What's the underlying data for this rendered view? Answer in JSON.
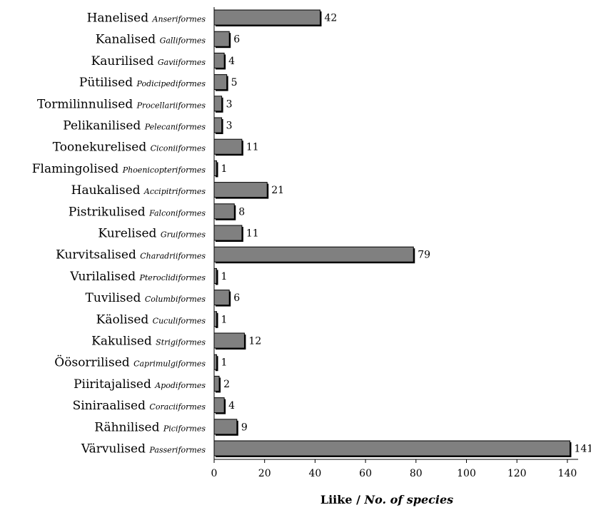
{
  "chart_data": {
    "type": "bar",
    "orientation": "horizontal",
    "categories": [
      {
        "name": "Hanelised",
        "latin": "Anseriformes"
      },
      {
        "name": "Kanalised",
        "latin": "Galliformes"
      },
      {
        "name": "Kaurilised",
        "latin": "Gaviiformes"
      },
      {
        "name": "Pütilised",
        "latin": "Podicipediformes"
      },
      {
        "name": "Tormilinnulised",
        "latin": "Procellariiformes"
      },
      {
        "name": "Pelikanilised",
        "latin": "Pelecaniformes"
      },
      {
        "name": "Toonekurelised",
        "latin": "Ciconiiformes"
      },
      {
        "name": "Flamingolised",
        "latin": "Phoenicopteriformes"
      },
      {
        "name": "Haukalised",
        "latin": "Accipitriformes"
      },
      {
        "name": "Pistrikulised",
        "latin": "Falconiformes"
      },
      {
        "name": "Kurelised",
        "latin": "Gruiformes"
      },
      {
        "name": "Kurvitsalised",
        "latin": "Charadriiformes"
      },
      {
        "name": "Vurilalised",
        "latin": "Pteroclidiformes"
      },
      {
        "name": "Tuvilised",
        "latin": "Columbiformes"
      },
      {
        "name": "Käolised",
        "latin": "Cuculiformes"
      },
      {
        "name": "Kakulised",
        "latin": "Strigiformes"
      },
      {
        "name": "Öösorrilised",
        "latin": "Caprimulgiformes"
      },
      {
        "name": "Piiritajalised",
        "latin": "Apodiformes"
      },
      {
        "name": "Siniraalised",
        "latin": "Coraciiformes"
      },
      {
        "name": "Rähnilised",
        "latin": "Piciformes"
      },
      {
        "name": "Värvulised",
        "latin": "Passeriformes"
      }
    ],
    "values": [
      42,
      6,
      4,
      5,
      3,
      3,
      11,
      1,
      21,
      8,
      11,
      79,
      1,
      6,
      1,
      12,
      1,
      2,
      4,
      9,
      141
    ],
    "xlim": [
      0,
      150
    ],
    "xticks": [
      0,
      20,
      40,
      60,
      80,
      100,
      120,
      140
    ],
    "xlabel": {
      "main": "Liike /",
      "italic": "No. of species"
    },
    "grid": false,
    "legend": "none",
    "colors": {
      "bar_fill": "#808080",
      "bar_stroke": "#000000",
      "shadow": "#000000"
    }
  }
}
